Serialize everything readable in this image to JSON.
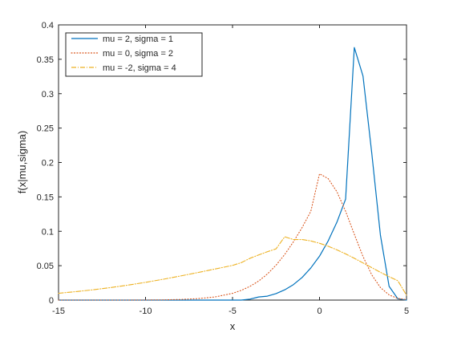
{
  "chart_data": {
    "type": "line",
    "xlabel": "x",
    "ylabel": "f(x|mu,sigma)",
    "xlim": [
      -15,
      5
    ],
    "ylim": [
      0,
      0.4
    ],
    "xticks": [
      -15,
      -10,
      -5,
      0,
      5
    ],
    "yticks": [
      0,
      0.05,
      0.1,
      0.15,
      0.2,
      0.25,
      0.3,
      0.35,
      0.4
    ],
    "xtick_labels": [
      "-15",
      "-10",
      "-5",
      "0",
      "5"
    ],
    "ytick_labels": [
      "0",
      "0.05",
      "0.1",
      "0.15",
      "0.2",
      "0.25",
      "0.3",
      "0.35",
      "0.4"
    ],
    "grid": false,
    "legend_position": "top-left",
    "x": [
      -15,
      -14,
      -13,
      -12,
      -11,
      -10,
      -9,
      -8,
      -7,
      -6,
      -5,
      -4.5,
      -4,
      -3.5,
      -3,
      -2.5,
      -2,
      -1.5,
      -1,
      -0.5,
      0,
      0.5,
      1,
      1.5,
      2,
      2.5,
      3,
      3.5,
      4,
      4.5,
      5
    ],
    "series": [
      {
        "name": "mu = 2, sigma = 1",
        "style": "solid",
        "color": "#0072BD",
        "values": [
          0,
          0,
          0,
          0,
          0,
          0,
          0,
          0,
          0,
          0,
          0.0,
          0.0,
          0.0014,
          0.0045,
          0.0057,
          0.0094,
          0.0149,
          0.0225,
          0.0329,
          0.0467,
          0.0638,
          0.0861,
          0.1132,
          0.1468,
          0.3671,
          0.3256,
          0.2144,
          0.0945,
          0.02,
          0.002,
          0.0
        ]
      },
      {
        "name": "mu = 0, sigma = 2",
        "style": "dotted",
        "color": "#D95319",
        "values": [
          0.0,
          0.0,
          0.0,
          0.0,
          0.0,
          0.0001,
          0.0003,
          0.0009,
          0.0021,
          0.0046,
          0.0098,
          0.0141,
          0.0199,
          0.0277,
          0.0378,
          0.0507,
          0.0663,
          0.0847,
          0.1055,
          0.129,
          0.1836,
          0.1765,
          0.1575,
          0.1291,
          0.0957,
          0.0633,
          0.0368,
          0.0183,
          0.0075,
          0.0024,
          0.0006
        ]
      },
      {
        "name": "mu = -2, sigma = 4",
        "style": "dashdot",
        "color": "#EDB120",
        "values": [
          0.0099,
          0.0123,
          0.015,
          0.0182,
          0.0218,
          0.0258,
          0.0302,
          0.035,
          0.04,
          0.0452,
          0.0504,
          0.0544,
          0.0607,
          0.0656,
          0.0703,
          0.0744,
          0.092,
          0.088,
          0.088,
          0.086,
          0.0826,
          0.0783,
          0.073,
          0.0672,
          0.0608,
          0.054,
          0.0472,
          0.0404,
          0.034,
          0.0282,
          0.0072
        ]
      }
    ]
  }
}
